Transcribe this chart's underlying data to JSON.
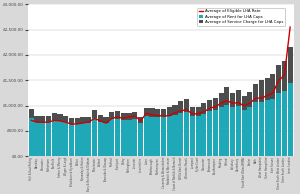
{
  "categories": [
    "Hull & East Riding",
    "Barnsley",
    "Doncaster",
    "Rotherham",
    "Sheffield",
    "Sefton & Mersey",
    "Wigan & Leigh",
    "Blackburn & Hyndburn",
    "Bolton",
    "Knowsley & Halton",
    "Bury & Rochdale & Oldham",
    "Manchester",
    "Salford",
    "Tameside & Glossop",
    "Trafford",
    "Stockport",
    "Derby",
    "Nottingham",
    "Leicester",
    "Lincolnshire",
    "Luton",
    "Peterborough",
    "Northampton",
    "Coventry & Warwickshire",
    "Redditch & Worcester",
    "Coast of Norfolk & Norwich",
    "WM & East Dorset",
    "Worcester Roads",
    "Liverpool",
    "Fylde Coast",
    "Gloucester",
    "Portsmouth",
    "Southampton",
    "Reading",
    "Oxford",
    "Salisbury",
    "Canterbury",
    "South East Wales BRMA",
    "Exeter",
    "Bath",
    "West Hampshire",
    "Outer Hampshire",
    "East Sussex",
    "Outer South West London",
    "Outer South London",
    "Inner London"
  ],
  "rent_values": [
    760,
    680,
    670,
    670,
    720,
    700,
    670,
    640,
    640,
    650,
    660,
    750,
    680,
    650,
    730,
    740,
    710,
    720,
    730,
    660,
    790,
    780,
    770,
    780,
    790,
    820,
    860,
    870,
    800,
    790,
    840,
    890,
    920,
    980,
    1020,
    970,
    1000,
    920,
    970,
    1070,
    1080,
    1120,
    1140,
    1250,
    1280,
    1450
  ],
  "service_charge_values": [
    180,
    120,
    120,
    130,
    140,
    140,
    130,
    110,
    110,
    120,
    120,
    160,
    130,
    120,
    150,
    150,
    140,
    140,
    140,
    120,
    170,
    170,
    160,
    160,
    180,
    200,
    230,
    260,
    180,
    190,
    210,
    230,
    240,
    270,
    340,
    280,
    310,
    270,
    300,
    350,
    420,
    430,
    490,
    560,
    600,
    700
  ],
  "lha_values": [
    710,
    672,
    672,
    672,
    710,
    700,
    672,
    632,
    640,
    658,
    680,
    745,
    700,
    655,
    748,
    776,
    748,
    778,
    798,
    698,
    848,
    818,
    798,
    798,
    798,
    855,
    898,
    918,
    838,
    838,
    878,
    948,
    978,
    1048,
    1098,
    1048,
    1058,
    998,
    1048,
    1148,
    1148,
    1198,
    1248,
    1498,
    1598,
    2550
  ],
  "rent_color": "#1fa8b8",
  "service_charge_color": "#4d4d4d",
  "lha_color": "#cc0000",
  "background_color": "#d9d9d9",
  "plot_background_color": "#ffffff",
  "ylim_max": 3000,
  "ylabel_ticks": [
    0,
    500,
    1000,
    1500,
    2000,
    2500,
    3000
  ],
  "legend_labels": [
    "Average of Service Charge for LHA Caps",
    "Average of Rent for LHA Caps",
    "Average of Eligible LHA Rate"
  ]
}
